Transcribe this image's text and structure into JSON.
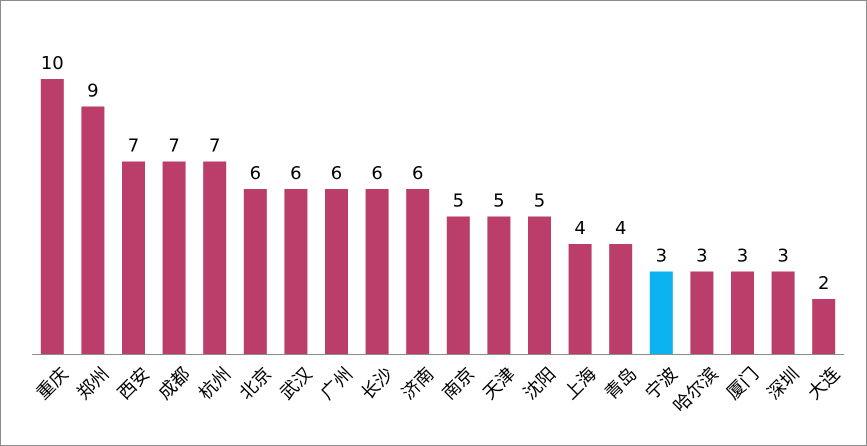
{
  "chart_data": {
    "type": "bar",
    "title": "",
    "xlabel": "",
    "ylabel": "",
    "ylim": [
      0,
      10
    ],
    "grid": false,
    "legend": "none",
    "categories": [
      "重庆",
      "郑州",
      "西安",
      "成都",
      "杭州",
      "北京",
      "武汉",
      "广州",
      "长沙",
      "济南",
      "南京",
      "天津",
      "沈阳",
      "上海",
      "青岛",
      "宁波",
      "哈尔滨",
      "厦门",
      "深圳",
      "大连"
    ],
    "values": [
      10,
      9,
      7,
      7,
      7,
      6,
      6,
      6,
      6,
      6,
      5,
      5,
      5,
      4,
      4,
      3,
      3,
      3,
      3,
      2
    ],
    "value_labels": [
      "10",
      "9",
      "7",
      "7",
      "7",
      "6",
      "6",
      "6",
      "6",
      "6",
      "5",
      "5",
      "5",
      "4",
      "4",
      "3",
      "3",
      "3",
      "3",
      "2"
    ],
    "colors": {
      "bar": "#bb3d6a",
      "highlight": "#0bb4f0",
      "axis": "#8c8c8c"
    },
    "highlight_category": "宁波"
  }
}
